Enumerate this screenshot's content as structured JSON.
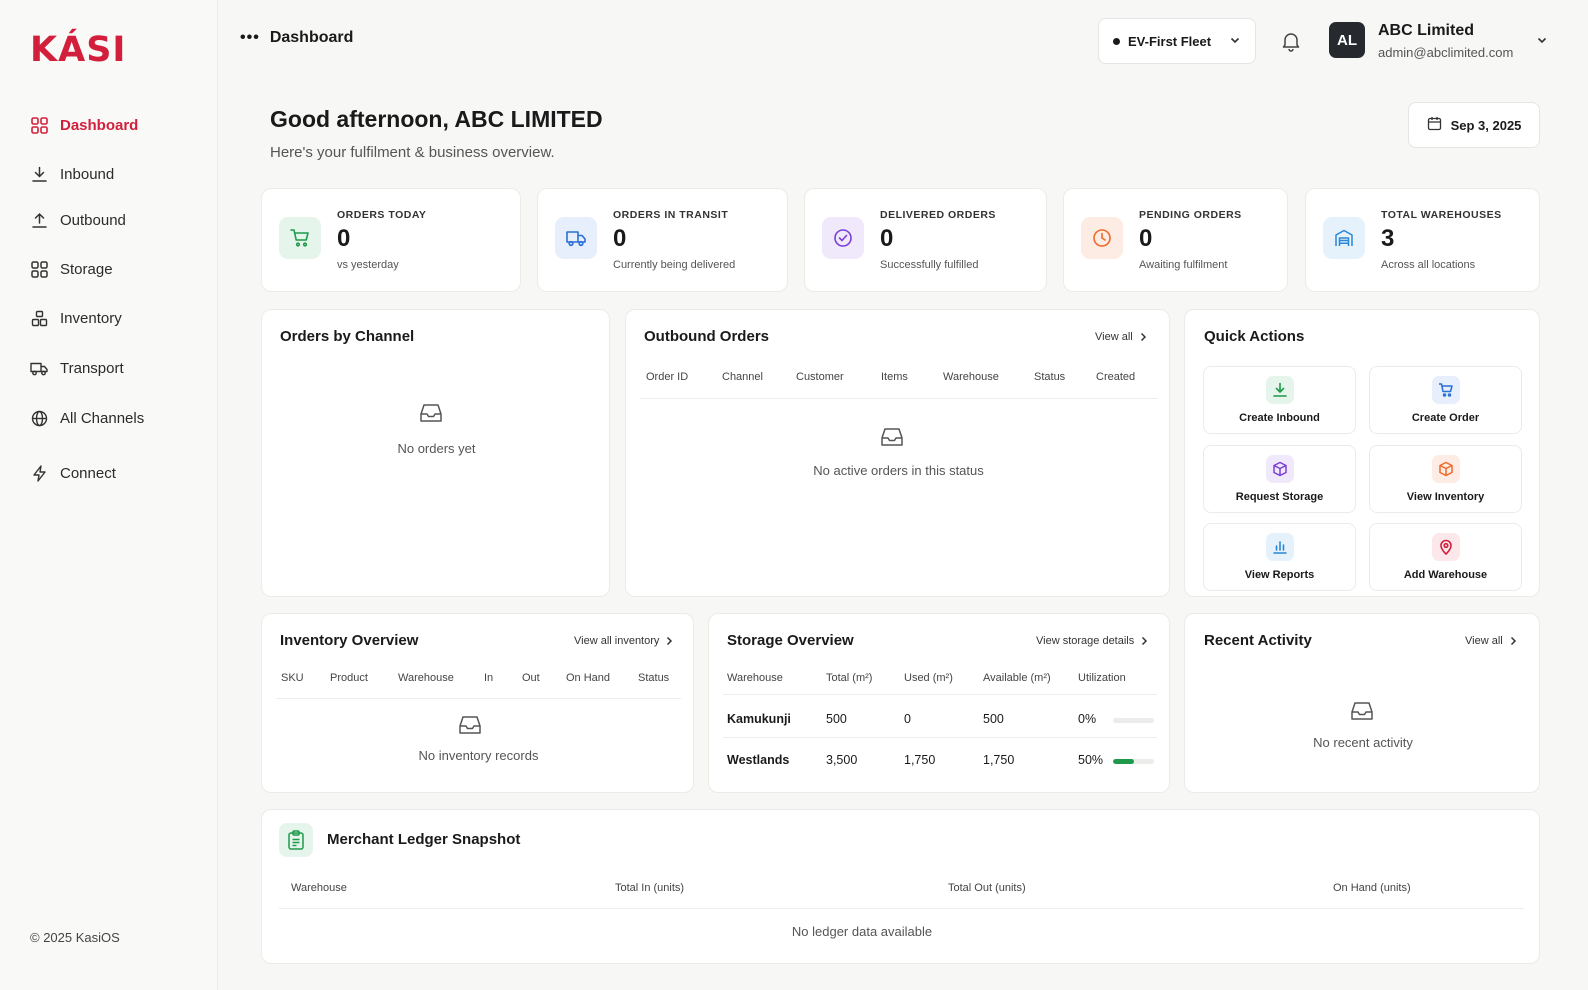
{
  "brand": {
    "logo": "KÁSI",
    "accent": "#d21f3c"
  },
  "sidebar": {
    "items": [
      {
        "label": "Dashboard",
        "icon": "grid-icon",
        "active": true
      },
      {
        "label": "Inbound",
        "icon": "download-icon"
      },
      {
        "label": "Outbound",
        "icon": "upload-icon"
      },
      {
        "label": "Storage",
        "icon": "grid-icon"
      },
      {
        "label": "Inventory",
        "icon": "boxes-icon"
      },
      {
        "label": "Transport",
        "icon": "truck-icon"
      },
      {
        "label": "All Channels",
        "icon": "globe-icon"
      },
      {
        "label": "Connect",
        "icon": "bolt-icon"
      }
    ],
    "copyright": "© 2025 KasiOS"
  },
  "topbar": {
    "title": "Dashboard",
    "fleet": "EV-First Fleet",
    "user": {
      "initials": "AL",
      "name": "ABC Limited",
      "email": "admin@abclimited.com"
    }
  },
  "greeting": {
    "title": "Good afternoon, ABC LIMITED",
    "subtitle": "Here's your fulfilment & business overview.",
    "date": "Sep 3, 2025"
  },
  "stats": [
    {
      "label": "ORDERS TODAY",
      "value": "0",
      "sub": "vs yesterday",
      "icon": "cart-icon",
      "color": "#1f9a4b",
      "bg": "#e6f5ec"
    },
    {
      "label": "ORDERS IN TRANSIT",
      "value": "0",
      "sub": "Currently being delivered",
      "icon": "truck-icon",
      "color": "#2a6fd6",
      "bg": "#e6effb"
    },
    {
      "label": "DELIVERED ORDERS",
      "value": "0",
      "sub": "Successfully fulfilled",
      "icon": "check-circle-icon",
      "color": "#7b3fd6",
      "bg": "#f0e9fb"
    },
    {
      "label": "PENDING ORDERS",
      "value": "0",
      "sub": "Awaiting fulfilment",
      "icon": "clock-icon",
      "color": "#ec6a2c",
      "bg": "#fdece3"
    },
    {
      "label": "TOTAL WAREHOUSES",
      "value": "3",
      "sub": "Across all locations",
      "icon": "warehouse-icon",
      "color": "#2a86d6",
      "bg": "#e5f2fb"
    }
  ],
  "orders_by_channel": {
    "title": "Orders by Channel",
    "empty": "No orders yet"
  },
  "outbound_orders": {
    "title": "Outbound Orders",
    "view_all": "View all",
    "columns": [
      "Order ID",
      "Channel",
      "Customer",
      "Items",
      "Warehouse",
      "Status",
      "Created"
    ],
    "empty": "No active orders in this status"
  },
  "quick_actions": {
    "title": "Quick Actions",
    "items": [
      {
        "label": "Create Inbound",
        "icon": "download-icon",
        "color": "#1f9a4b",
        "bg": "#e6f5ec"
      },
      {
        "label": "Create Order",
        "icon": "cart-icon",
        "color": "#2a6fd6",
        "bg": "#e6effb"
      },
      {
        "label": "Request Storage",
        "icon": "box-icon",
        "color": "#7b3fd6",
        "bg": "#f0e9fb"
      },
      {
        "label": "View Inventory",
        "icon": "box-icon",
        "color": "#ec6a2c",
        "bg": "#fdece3"
      },
      {
        "label": "View Reports",
        "icon": "bar-chart-icon",
        "color": "#2a86d6",
        "bg": "#e5f2fb"
      },
      {
        "label": "Add Warehouse",
        "icon": "map-pin-icon",
        "color": "#d21f3c",
        "bg": "#fce8eb"
      }
    ]
  },
  "inventory_overview": {
    "title": "Inventory Overview",
    "view_all": "View all inventory",
    "columns": [
      "SKU",
      "Product",
      "Warehouse",
      "In",
      "Out",
      "On Hand",
      "Status"
    ],
    "empty": "No inventory records"
  },
  "storage_overview": {
    "title": "Storage Overview",
    "view_all": "View storage details",
    "columns": [
      "Warehouse",
      "Total (m²)",
      "Used (m²)",
      "Available (m²)",
      "Utilization"
    ],
    "rows": [
      {
        "warehouse": "Kamukunji",
        "total": "500",
        "used": "0",
        "available": "500",
        "utilization": "0%",
        "util_fraction": 0.0
      },
      {
        "warehouse": "Westlands",
        "total": "3,500",
        "used": "1,750",
        "available": "1,750",
        "utilization": "50%",
        "util_fraction": 0.5
      }
    ]
  },
  "recent_activity": {
    "title": "Recent Activity",
    "view_all": "View all",
    "empty": "No recent activity"
  },
  "ledger": {
    "title": "Merchant Ledger Snapshot",
    "columns": [
      "Warehouse",
      "Total In (units)",
      "Total Out (units)",
      "On Hand (units)"
    ],
    "empty": "No ledger data available"
  }
}
